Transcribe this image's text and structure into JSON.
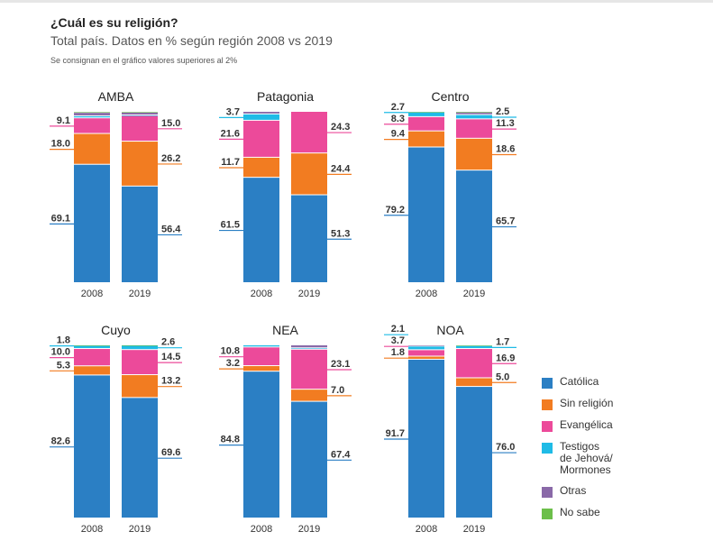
{
  "header": {
    "title": "¿Cuál es su religión?",
    "subtitle": "Total país. Datos en % según región 2008 vs 2019",
    "note": "Se consignan en el gráfico valores superiores al 2%"
  },
  "legend": [
    {
      "key": "catolica",
      "label": "Católica",
      "color": "#2b7fc4"
    },
    {
      "key": "sin_religion",
      "label": "Sin religión",
      "color": "#f27c21"
    },
    {
      "key": "evangelica",
      "label": "Evangélica",
      "color": "#ec4a9a"
    },
    {
      "key": "testigos",
      "label": "Testigos\nde Jehová/\nMormones",
      "color": "#1fbbe6"
    },
    {
      "key": "otras",
      "label": "Otras",
      "color": "#8a69a8"
    },
    {
      "key": "no_sabe",
      "label": "No sabe",
      "color": "#6cbf4a"
    }
  ],
  "chart_data": {
    "type": "bar",
    "stacked": true,
    "title": "¿Cuál es su religión?",
    "subtitle": "Total país. Datos en % según región 2008 vs 2019",
    "unit": "%",
    "ylim": [
      0,
      100
    ],
    "categories": [
      "2008",
      "2019"
    ],
    "series_names": [
      "Católica",
      "Sin religión",
      "Evangélica",
      "Testigos de Jehová/Mormones",
      "Otras",
      "No sabe"
    ],
    "panels": [
      {
        "region": "AMBA",
        "bars": [
          {
            "year": "2008",
            "catolica": 69.1,
            "sin_religion": 18.0,
            "evangelica": 9.1,
            "testigos": 1.2,
            "otras": 2.0,
            "no_sabe": 0.6,
            "labels": {
              "catolica": "69.1",
              "sin_religion": "18.0",
              "evangelica": "9.1"
            }
          },
          {
            "year": "2019",
            "catolica": 56.4,
            "sin_religion": 26.2,
            "evangelica": 15.0,
            "testigos": 0.3,
            "otras": 1.6,
            "no_sabe": 0.5,
            "labels": {
              "catolica": "56.4",
              "sin_religion": "26.2",
              "evangelica": "15.0"
            }
          }
        ]
      },
      {
        "region": "Patagonia",
        "bars": [
          {
            "year": "2008",
            "catolica": 61.5,
            "sin_religion": 11.7,
            "evangelica": 21.6,
            "testigos": 3.7,
            "otras": 1.5,
            "no_sabe": 0.0,
            "labels": {
              "catolica": "61.5",
              "sin_religion": "11.7",
              "evangelica": "21.6",
              "testigos": "3.7"
            }
          },
          {
            "year": "2019",
            "catolica": 51.3,
            "sin_religion": 24.4,
            "evangelica": 24.3,
            "testigos": 0.0,
            "otras": 0.0,
            "no_sabe": 0.0,
            "labels": {
              "catolica": "51.3",
              "sin_religion": "24.4",
              "evangelica": "24.3"
            }
          }
        ]
      },
      {
        "region": "Centro",
        "bars": [
          {
            "year": "2008",
            "catolica": 79.2,
            "sin_religion": 9.4,
            "evangelica": 8.3,
            "testigos": 2.7,
            "otras": 0.0,
            "no_sabe": 0.4,
            "labels": {
              "catolica": "79.2",
              "sin_religion": "9.4",
              "evangelica": "8.3",
              "testigos": "2.7"
            }
          },
          {
            "year": "2019",
            "catolica": 65.7,
            "sin_religion": 18.6,
            "evangelica": 11.3,
            "testigos": 2.5,
            "otras": 1.5,
            "no_sabe": 0.4,
            "labels": {
              "catolica": "65.7",
              "sin_religion": "18.6",
              "evangelica": "11.3",
              "testigos": "2.5"
            }
          }
        ]
      },
      {
        "region": "Cuyo",
        "bars": [
          {
            "year": "2008",
            "catolica": 82.6,
            "sin_religion": 5.3,
            "evangelica": 10.0,
            "testigos": 1.8,
            "otras": 0.0,
            "no_sabe": 0.3,
            "labels": {
              "catolica": "82.6",
              "sin_religion": "5.3",
              "evangelica": "10.0",
              "testigos": "1.8"
            }
          },
          {
            "year": "2019",
            "catolica": 69.6,
            "sin_religion": 13.2,
            "evangelica": 14.5,
            "testigos": 2.6,
            "otras": 0.0,
            "no_sabe": 0.1,
            "labels": {
              "catolica": "69.6",
              "sin_religion": "13.2",
              "evangelica": "14.5",
              "testigos": "2.6"
            }
          }
        ]
      },
      {
        "region": "NEA",
        "bars": [
          {
            "year": "2008",
            "catolica": 84.8,
            "sin_religion": 3.2,
            "evangelica": 10.8,
            "testigos": 1.2,
            "otras": 0.0,
            "no_sabe": 0.0,
            "labels": {
              "catolica": "84.8",
              "sin_religion": "3.2",
              "evangelica": "10.8"
            }
          },
          {
            "year": "2019",
            "catolica": 67.4,
            "sin_religion": 7.0,
            "evangelica": 23.1,
            "testigos": 0.8,
            "otras": 1.7,
            "no_sabe": 0.0,
            "labels": {
              "catolica": "67.4",
              "sin_religion": "7.0",
              "evangelica": "23.1"
            }
          }
        ]
      },
      {
        "region": "NOA",
        "bars": [
          {
            "year": "2008",
            "catolica": 91.7,
            "sin_religion": 1.8,
            "evangelica": 3.7,
            "testigos": 2.1,
            "otras": 0.7,
            "no_sabe": 0.0,
            "labels": {
              "catolica": "91.7",
              "sin_religion": "1.8",
              "evangelica": "3.7",
              "testigos": "2.1"
            }
          },
          {
            "year": "2019",
            "catolica": 76.0,
            "sin_religion": 5.0,
            "evangelica": 16.9,
            "testigos": 1.7,
            "otras": 0.0,
            "no_sabe": 0.4,
            "labels": {
              "catolica": "76.0",
              "sin_religion": "5.0",
              "evangelica": "16.9",
              "testigos": "1.7"
            }
          }
        ]
      }
    ]
  }
}
